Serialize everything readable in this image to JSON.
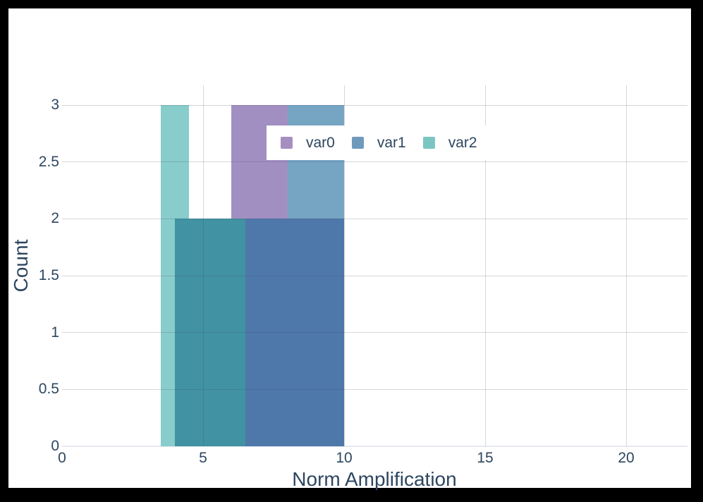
{
  "window": {
    "background_color": "#000000",
    "canvas_color": "#ffffff"
  },
  "chart_data": {
    "type": "histogram",
    "mode": "overlay",
    "title": "",
    "xlabel": "Norm Amplification",
    "ylabel": "Count",
    "xlim": [
      0,
      22.2
    ],
    "ylim": [
      0,
      3.17
    ],
    "grid": true,
    "x_ticks": [
      0,
      5,
      10,
      15,
      20
    ],
    "x_tick_labels": [
      "0",
      "5",
      "10",
      "15",
      "20"
    ],
    "y_ticks": [
      0,
      0.5,
      1,
      1.5,
      2,
      2.5,
      3
    ],
    "y_tick_labels": [
      "0",
      "0.5",
      "1",
      "1.5",
      "2",
      "2.5",
      "3"
    ],
    "text_color": "#2d4660",
    "series": [
      {
        "name": "var0",
        "color": "#a28fc2",
        "bins": [
          {
            "x0": 6.0,
            "x1": 8.0,
            "count": 3
          }
        ]
      },
      {
        "name": "var1",
        "color": "#76a5c4",
        "bins": [
          {
            "x0": 6.5,
            "x1": 10.0,
            "count": 2
          },
          {
            "x0": 8.0,
            "x1": 10.0,
            "count": 3
          }
        ]
      },
      {
        "name": "var2",
        "color": "#88cccb",
        "bins": [
          {
            "x0": 3.5,
            "x1": 4.5,
            "count": 3
          },
          {
            "x0": 4.0,
            "x1": 6.5,
            "count": 2
          }
        ]
      }
    ],
    "rendered_segments": [
      {
        "series": "var2",
        "x0": 3.5,
        "x1": 4.5,
        "y0": 2,
        "y1": 3,
        "color": "#88cccb"
      },
      {
        "series": "var2",
        "x0": 3.5,
        "x1": 4.0,
        "y0": 0,
        "y1": 2,
        "color": "#88cccb"
      },
      {
        "series": "var2+var1",
        "x0": 4.0,
        "x1": 6.5,
        "y0": 0,
        "y1": 2,
        "color": "#4192a2"
      },
      {
        "series": "var0",
        "x0": 6.0,
        "x1": 8.0,
        "y0": 2,
        "y1": 3,
        "color": "#a28fc2"
      },
      {
        "series": "var1",
        "x0": 8.0,
        "x1": 10.0,
        "y0": 2,
        "y1": 3,
        "color": "#76a5c4"
      },
      {
        "series": "var1+var0",
        "x0": 6.5,
        "x1": 10.0,
        "y0": 0,
        "y1": 2,
        "color": "#4e78aa"
      }
    ],
    "legend_position": "top-center-overlay"
  },
  "legend": {
    "background": "#ffffff",
    "items": [
      {
        "label": "var0",
        "color": "#a68fc0"
      },
      {
        "label": "var1",
        "color": "#6f9abc"
      },
      {
        "label": "var2",
        "color": "#7bc6c3"
      }
    ]
  }
}
